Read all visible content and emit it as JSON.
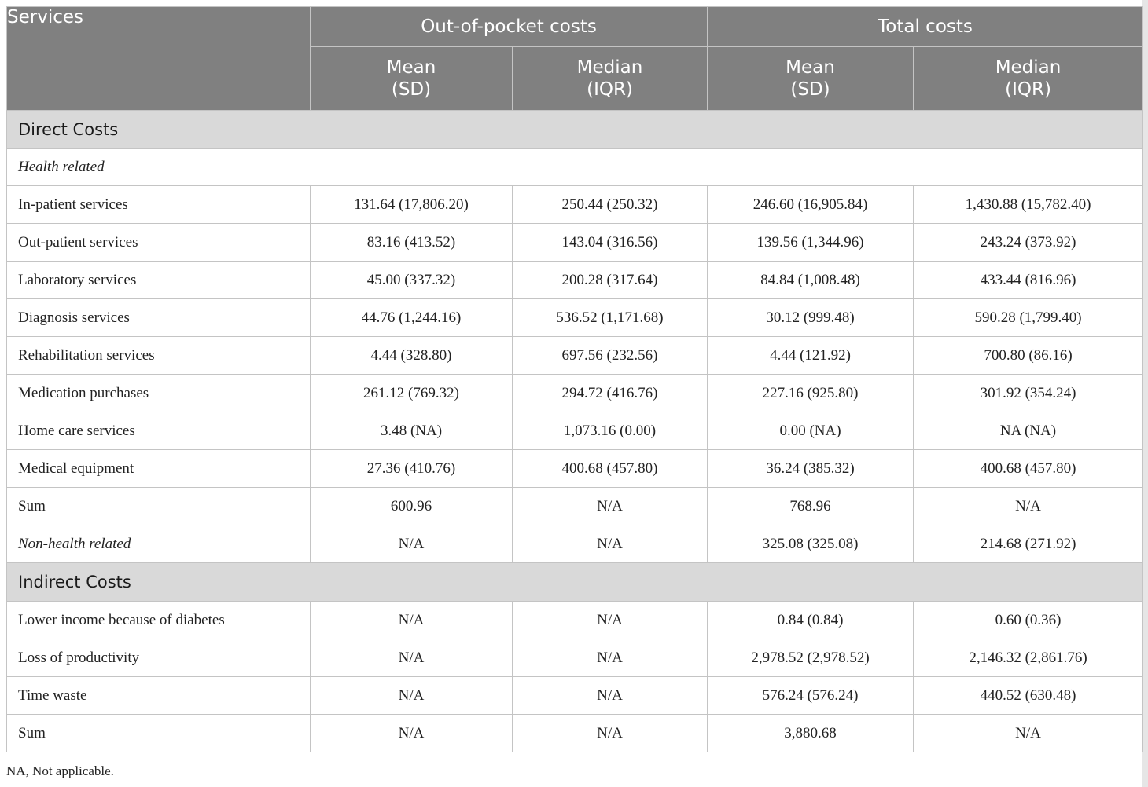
{
  "header": {
    "services": "Services",
    "groups": [
      "Out-of-pocket costs",
      "Total costs"
    ],
    "sub": [
      {
        "line1": "Mean",
        "line2": "(SD)"
      },
      {
        "line1": "Median",
        "line2": "(IQR)"
      },
      {
        "line1": "Mean",
        "line2": "(SD)"
      },
      {
        "line1": "Median",
        "line2": "(IQR)"
      }
    ]
  },
  "direct": {
    "title": "Direct Costs",
    "health_related": "Health related",
    "rows": [
      {
        "label": "In-patient services",
        "v": [
          "131.64 (17,806.20)",
          "250.44 (250.32)",
          "246.60 (16,905.84)",
          "1,430.88 (15,782.40)"
        ]
      },
      {
        "label": "Out-patient services",
        "v": [
          "83.16 (413.52)",
          "143.04 (316.56)",
          "139.56 (1,344.96)",
          "243.24 (373.92)"
        ]
      },
      {
        "label": "Laboratory services",
        "v": [
          "45.00 (337.32)",
          "200.28 (317.64)",
          "84.84 (1,008.48)",
          "433.44 (816.96)"
        ]
      },
      {
        "label": "Diagnosis services",
        "v": [
          "44.76 (1,244.16)",
          "536.52 (1,171.68)",
          "30.12 (999.48)",
          "590.28 (1,799.40)"
        ]
      },
      {
        "label": "Rehabilitation services",
        "v": [
          "4.44 (328.80)",
          "697.56 (232.56)",
          "4.44 (121.92)",
          "700.80 (86.16)"
        ]
      },
      {
        "label": "Medication purchases",
        "v": [
          "261.12 (769.32)",
          "294.72 (416.76)",
          "227.16 (925.80)",
          "301.92 (354.24)"
        ]
      },
      {
        "label": "Home care services",
        "v": [
          "3.48 (NA)",
          "1,073.16 (0.00)",
          "0.00 (NA)",
          "NA (NA)"
        ]
      },
      {
        "label": "Medical equipment",
        "v": [
          "27.36 (410.76)",
          "400.68 (457.80)",
          "36.24 (385.32)",
          "400.68 (457.80)"
        ]
      },
      {
        "label": "Sum",
        "v": [
          "600.96",
          "N/A",
          "768.96",
          "N/A"
        ]
      }
    ],
    "non_health": {
      "label": "Non-health related",
      "v": [
        "N/A",
        "N/A",
        "325.08 (325.08)",
        "214.68 (271.92)"
      ]
    }
  },
  "indirect": {
    "title": "Indirect Costs",
    "rows": [
      {
        "label": "Lower income because of diabetes",
        "v": [
          "N/A",
          "N/A",
          "0.84 (0.84)",
          "0.60 (0.36)"
        ]
      },
      {
        "label": "Loss of productivity",
        "v": [
          "N/A",
          "N/A",
          "2,978.52 (2,978.52)",
          "2,146.32 (2,861.76)"
        ]
      },
      {
        "label": "Time waste",
        "v": [
          "N/A",
          "N/A",
          "576.24 (576.24)",
          "440.52 (630.48)"
        ]
      },
      {
        "label": "Sum",
        "v": [
          "N/A",
          "N/A",
          "3,880.68",
          "N/A"
        ]
      }
    ]
  },
  "footnote": "NA, Not applicable."
}
